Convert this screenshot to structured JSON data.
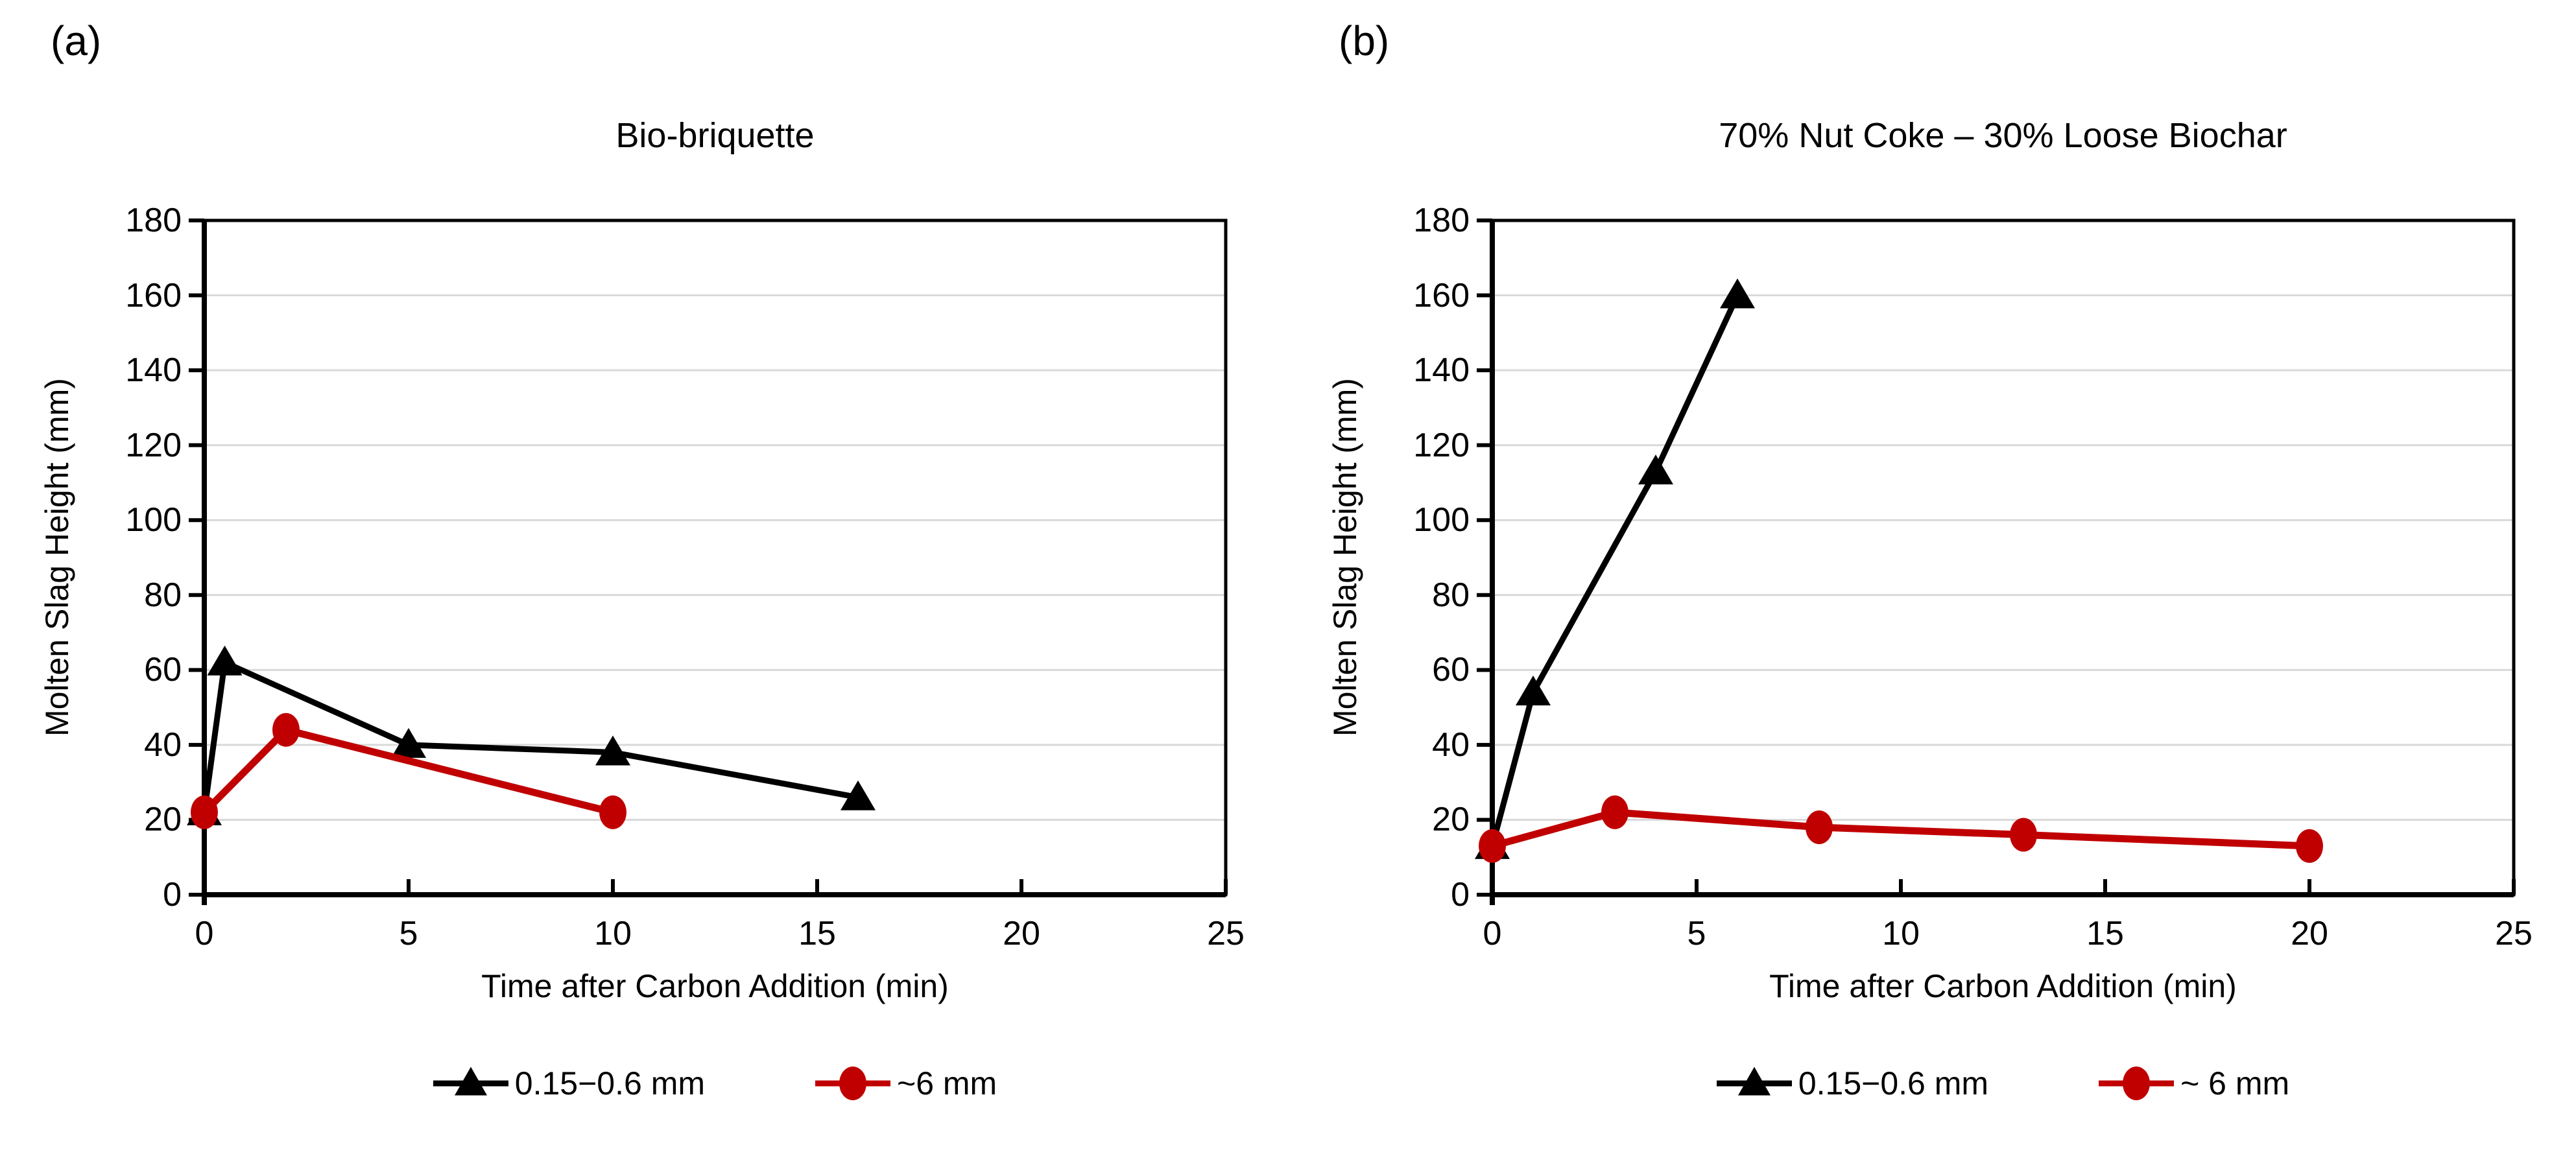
{
  "figure": {
    "panel_labels": [
      "(a)",
      "(b)"
    ],
    "background_color": "#FFFFFF",
    "gridline_color": "#D9D9D9",
    "axis_color": "#000000"
  },
  "chart_data": [
    {
      "type": "line",
      "panel_label": "(a)",
      "title": "Bio-briquette",
      "xlabel": "Time after Carbon Addition (min)",
      "ylabel": "Molten Slag Height (mm)",
      "xlim": [
        0,
        25
      ],
      "xticks": [
        0,
        5,
        10,
        15,
        20,
        25
      ],
      "ylim": [
        0,
        180
      ],
      "ytick_step": 20,
      "grid": "horizontal-only",
      "legend_position": "bottom",
      "series": [
        {
          "name": "0.15−0.6 mm",
          "color": "#000000",
          "marker": "triangle",
          "points": [
            [
              0,
              22
            ],
            [
              0.5,
              62
            ],
            [
              5,
              40
            ],
            [
              10,
              38
            ],
            [
              16,
              26
            ]
          ]
        },
        {
          "name": "~6 mm",
          "color": "#C00000",
          "marker": "circle",
          "points": [
            [
              0,
              22
            ],
            [
              2,
              44
            ],
            [
              10,
              22
            ]
          ]
        }
      ]
    },
    {
      "type": "line",
      "panel_label": "(b)",
      "title": "70% Nut Coke – 30% Loose Biochar",
      "xlabel": "Time after Carbon Addition (min)",
      "ylabel": "Molten Slag Height (mm)",
      "xlim": [
        0,
        25
      ],
      "xticks": [
        0,
        5,
        10,
        15,
        20,
        25
      ],
      "ylim": [
        0,
        180
      ],
      "ytick_step": 20,
      "grid": "horizontal-only",
      "legend_position": "bottom",
      "series": [
        {
          "name": "0.15−0.6 mm",
          "color": "#000000",
          "marker": "triangle",
          "points": [
            [
              0,
              13
            ],
            [
              1,
              54
            ],
            [
              4,
              113
            ],
            [
              6,
              160
            ]
          ]
        },
        {
          "name": "~ 6 mm",
          "color": "#C00000",
          "marker": "circle",
          "points": [
            [
              0,
              13
            ],
            [
              3,
              22
            ],
            [
              8,
              18
            ],
            [
              13,
              16
            ],
            [
              20,
              13
            ]
          ]
        }
      ]
    }
  ]
}
